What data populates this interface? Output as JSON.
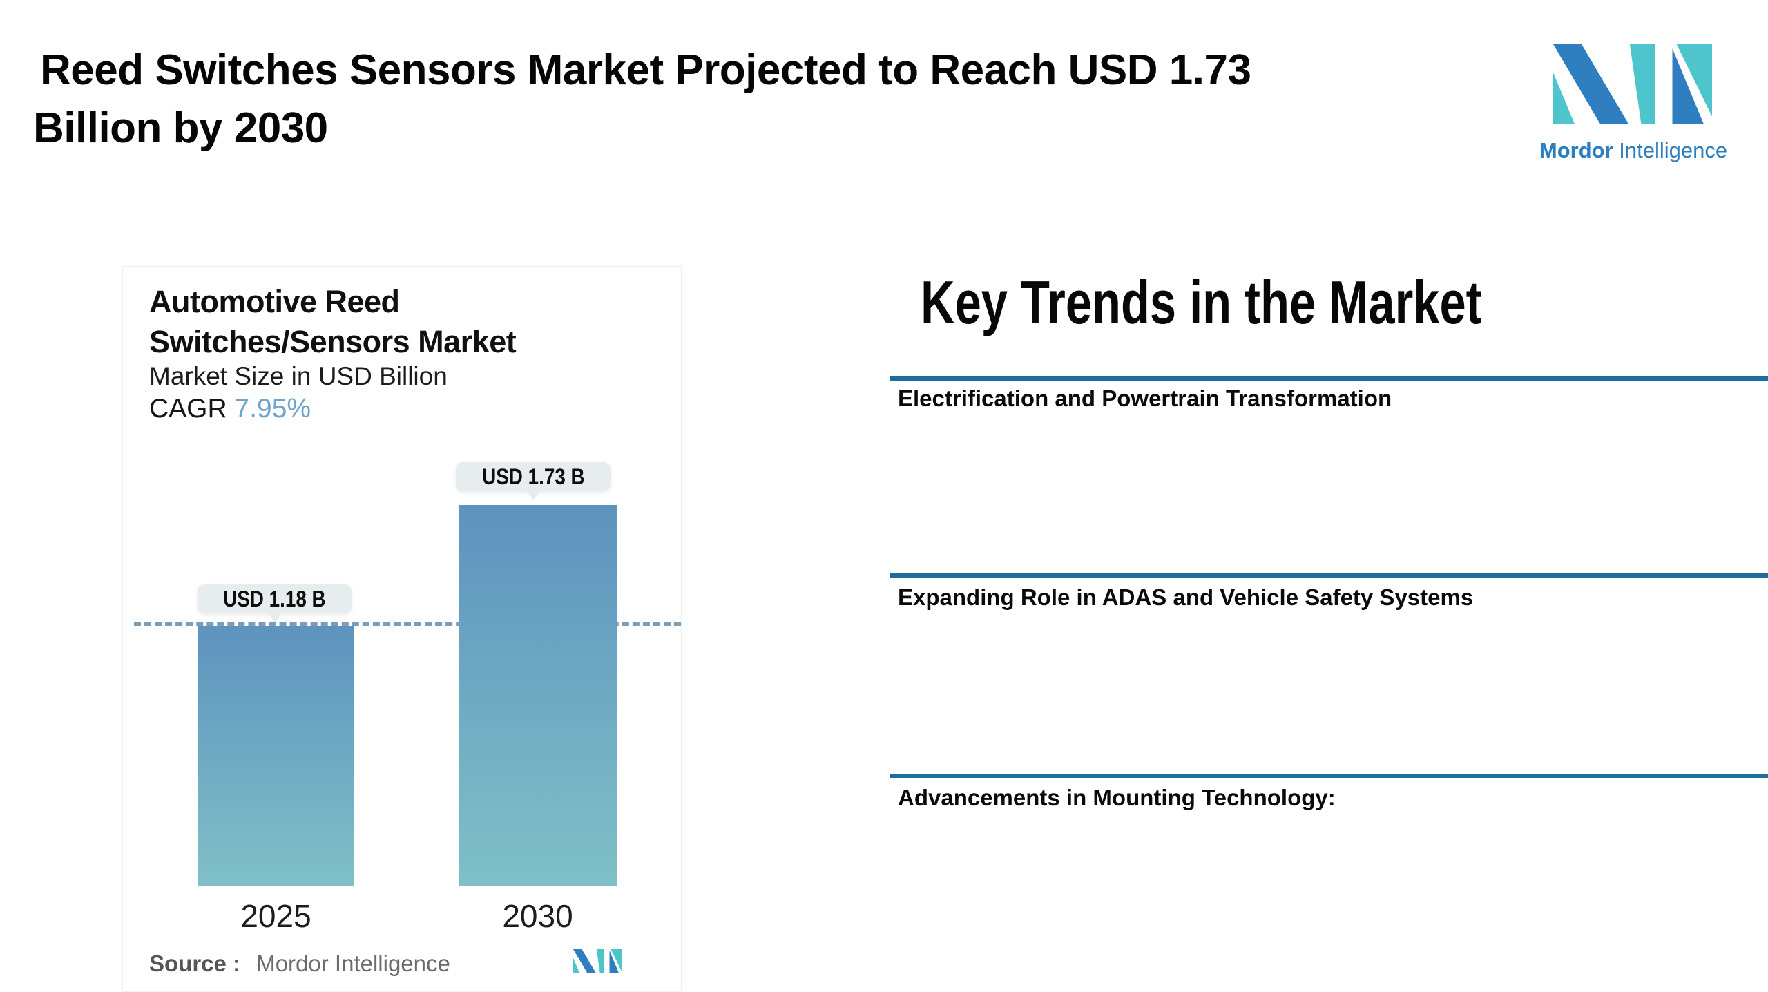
{
  "header": {
    "title_line1": "Reed Switches Sensors Market Projected to Reach USD 1.73",
    "title_line2": "Billion by 2030"
  },
  "brand": {
    "logo_icon": "mordor-intelligence-monogram",
    "name_bold": "Mordor",
    "name_light": "Intelligence",
    "colors": {
      "blue": "#2E7EC0",
      "teal": "#4EC5CD",
      "text": "#2D7EBE"
    }
  },
  "chart_card": {
    "title": "Automotive Reed Switches/Sensors Market",
    "subtitle": "Market Size in USD Billion",
    "cagr_label": "CAGR",
    "cagr_value": "7.95%",
    "source_label": "Source :",
    "source_value": "Mordor Intelligence"
  },
  "chart_data": {
    "type": "bar",
    "title": "Automotive Reed Switches/Sensors Market",
    "subtitle": "Market Size in USD Billion",
    "ylabel": "Market Size in USD Billion",
    "categories": [
      "2025",
      "2030"
    ],
    "values": [
      1.18,
      1.73
    ],
    "value_labels": [
      "USD 1.18 B",
      "USD 1.73 B"
    ],
    "cagr_percent": 7.95,
    "reference_line": {
      "at_value": 1.18,
      "style": "dashed"
    },
    "legend": "none",
    "gridlines": false,
    "bar_gradient_top": "#5E93BE",
    "bar_gradient_bottom": "#7FC0C8",
    "source": "Mordor Intelligence"
  },
  "trends": {
    "heading": "Key Trends in the Market",
    "items": [
      {
        "title": "Electrification and Powertrain Transformation"
      },
      {
        "title": "Expanding Role in ADAS and Vehicle Safety Systems"
      },
      {
        "title": "Advancements in Mounting Technology:"
      }
    ]
  },
  "colors": {
    "divider_blue": "#1E6C9C",
    "dashed_line": "#7C9CB8",
    "bubble_bg": "#E7EDEE",
    "cagr_value_blue": "#6FA5CD",
    "source_text": "#6B6B6B"
  }
}
